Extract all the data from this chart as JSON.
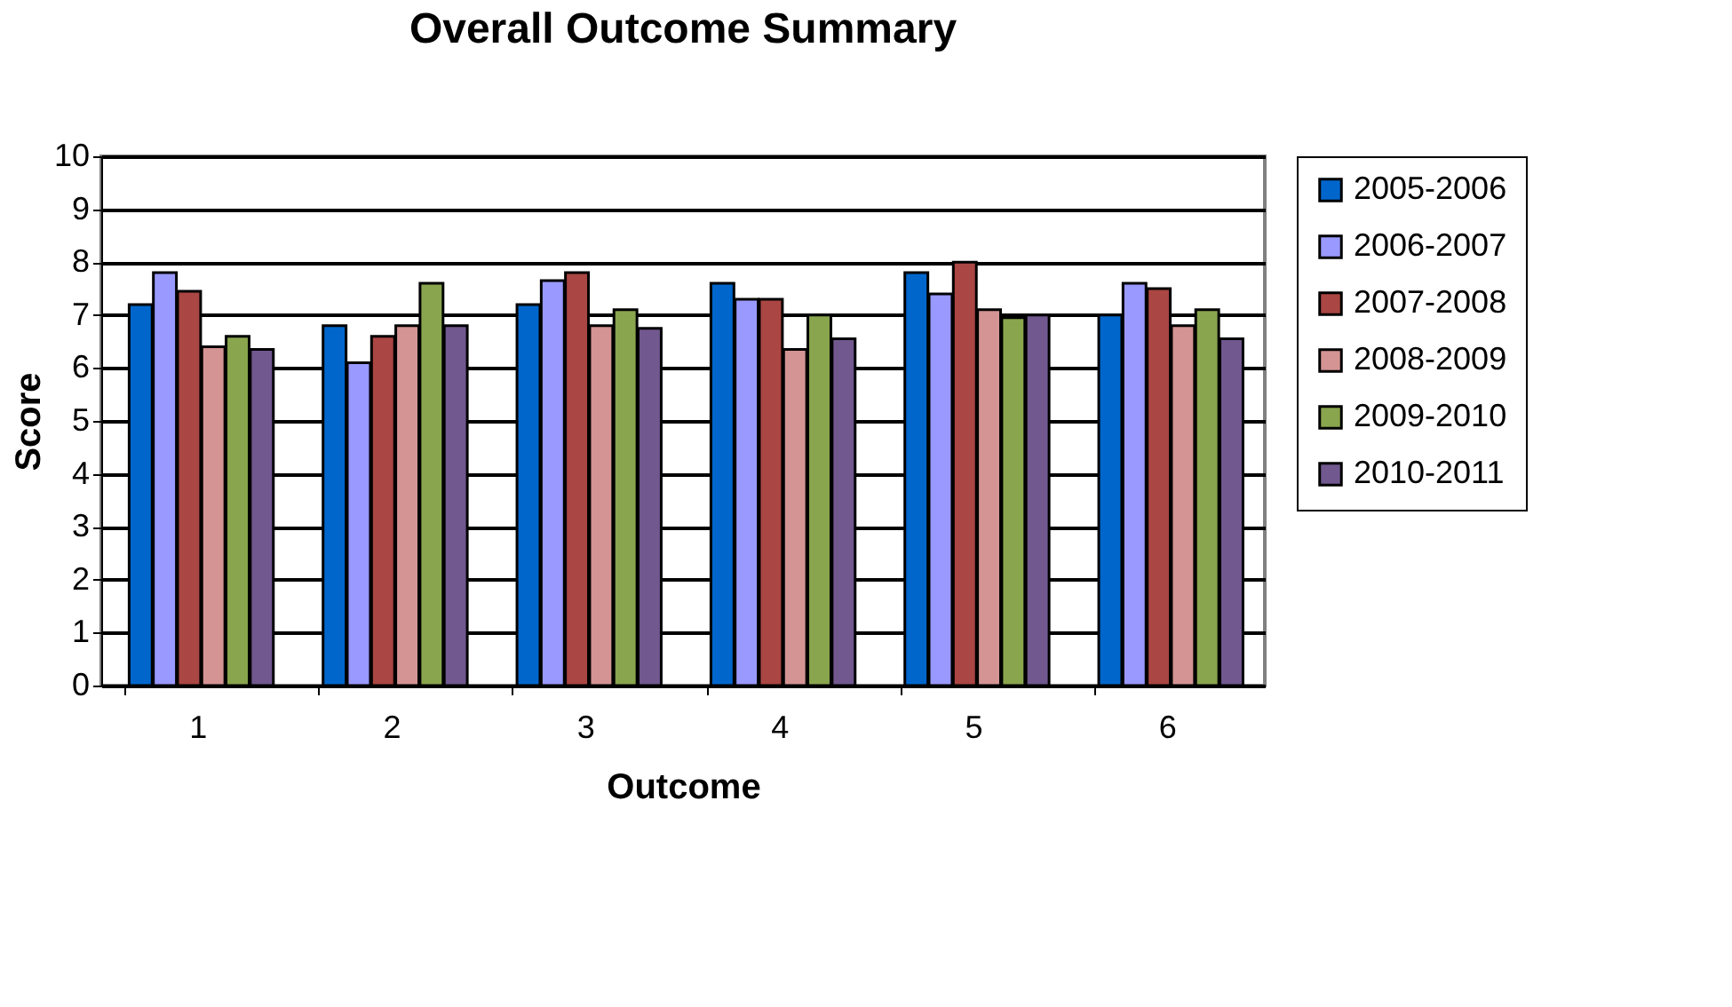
{
  "chart_data": {
    "type": "bar",
    "title": "Overall Outcome Summary",
    "xlabel": "Outcome",
    "ylabel": "Score",
    "categories": [
      "1",
      "2",
      "3",
      "4",
      "5",
      "6"
    ],
    "series": [
      {
        "name": "2005-2006",
        "color": "#0066cc",
        "values": [
          7.2,
          6.8,
          7.2,
          7.6,
          7.8,
          7.0
        ]
      },
      {
        "name": "2006-2007",
        "color": "#9999ff",
        "values": [
          7.8,
          6.1,
          7.65,
          7.3,
          7.4,
          7.6
        ]
      },
      {
        "name": "2007-2008",
        "color": "#aa4643",
        "values": [
          7.45,
          6.6,
          7.8,
          7.3,
          8.0,
          7.5
        ]
      },
      {
        "name": "2008-2009",
        "color": "#d49494",
        "values": [
          6.4,
          6.8,
          6.8,
          6.35,
          7.1,
          6.8
        ]
      },
      {
        "name": "2009-2010",
        "color": "#89a54e",
        "values": [
          6.6,
          7.6,
          7.1,
          7.0,
          6.95,
          7.1
        ]
      },
      {
        "name": "2010-2011",
        "color": "#71588f",
        "values": [
          6.35,
          6.8,
          6.75,
          6.55,
          7.0,
          6.55
        ]
      }
    ],
    "ylim": [
      0,
      10
    ],
    "yticks": [
      0,
      1,
      2,
      3,
      4,
      5,
      6,
      7,
      8,
      9,
      10
    ],
    "grid": "y",
    "legend": "right"
  }
}
